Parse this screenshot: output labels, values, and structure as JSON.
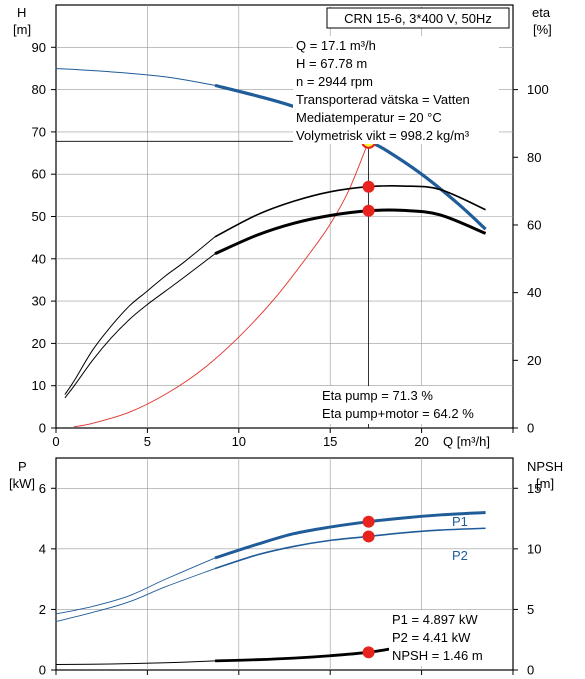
{
  "chart_data": [
    {
      "type": "line",
      "title": "CRN 15-6, 3*400 V, 50Hz",
      "xlabel": "Q [m³/h]",
      "ylabel_unit": "H",
      "ylabel_unit2": "[m]",
      "y2label_unit": "eta",
      "y2label_unit2": "[%]",
      "xlim": [
        0,
        25
      ],
      "ylim": [
        0,
        100
      ],
      "y2lim": [
        0,
        125
      ],
      "x_ticks": [
        0,
        5,
        10,
        15,
        20
      ],
      "y_ticks": [
        0,
        10,
        20,
        30,
        40,
        50,
        60,
        70,
        80,
        90
      ],
      "y2_ticks": [
        0,
        20,
        40,
        60,
        80,
        100
      ],
      "grid": true,
      "info_lines": [
        "Q = 17.1 m³/h",
        "H = 67.78 m",
        "n = 2944 rpm",
        "Transporterad vätska = Vatten",
        "Mediatemperatur = 20 °C",
        "Volymetrisk vikt = 998.2 kg/m³"
      ],
      "eta_lines": [
        "Eta pump = 71.3 %",
        "Eta pump+motor = 64.2 %"
      ],
      "colors": {
        "head": "#1f5c99",
        "system": "#e0322b",
        "eta": "#000000",
        "point": "#e8231d",
        "duty": "#fff23a"
      },
      "series": [
        {
          "kind": "head",
          "axis": "left",
          "x": [
            0,
            3,
            6,
            8.7,
            11,
            13,
            15,
            16,
            17.1,
            18,
            20,
            22,
            23.5
          ],
          "y": [
            85,
            84.2,
            83,
            81,
            78.5,
            76,
            72.5,
            70.3,
            67.78,
            65.8,
            60,
            53,
            47
          ],
          "bold_from": 8.7
        },
        {
          "kind": "system",
          "axis": "left",
          "x": [
            1,
            2,
            4,
            6,
            8,
            10,
            12,
            14,
            15,
            16,
            17.1
          ],
          "y": [
            0.3,
            1.1,
            3.7,
            8,
            13.8,
            21.5,
            30.8,
            42,
            48.2,
            56,
            67.78
          ],
          "bold_from": null
        },
        {
          "kind": "eta_pump",
          "axis": "right",
          "x": [
            0.5,
            1,
            2,
            3,
            4,
            5,
            6,
            7,
            8.7,
            11,
            13,
            15,
            17.1,
            19,
            21,
            23.5
          ],
          "y": [
            10,
            14,
            23,
            30,
            36,
            40.5,
            45,
            49,
            56.5,
            63,
            67,
            69.8,
            71.3,
            71.5,
            70.5,
            64.5
          ],
          "bold_from": 8.7
        },
        {
          "kind": "eta_total",
          "axis": "right",
          "x": [
            0.5,
            1,
            2,
            3,
            4,
            5,
            6,
            7,
            8.7,
            11,
            13,
            15,
            17.1,
            19,
            21,
            23.5
          ],
          "y": [
            9,
            12.5,
            20,
            26.5,
            32,
            36.5,
            40.5,
            44.5,
            51.5,
            57,
            60.5,
            62.8,
            64.2,
            64.3,
            63,
            57.5
          ],
          "bold_from": 8.7
        }
      ],
      "duty_point": {
        "x": 17.1,
        "y": 67.78
      },
      "markers": [
        {
          "axis": "right",
          "x": 17.1,
          "y": 71.3
        },
        {
          "axis": "right",
          "x": 17.1,
          "y": 64.2
        }
      ]
    },
    {
      "type": "line",
      "ylabel_unit": "P",
      "ylabel_unit2": "[kW]",
      "y2label_unit": "NPSH",
      "y2label_unit2": "[m]",
      "xlim": [
        0,
        25
      ],
      "ylim": [
        0,
        7
      ],
      "y2lim": [
        0,
        17.5
      ],
      "y_ticks": [
        0,
        2,
        4,
        6
      ],
      "y2_ticks": [
        0,
        5,
        10,
        15
      ],
      "grid": true,
      "info_lines": [
        "P1 = 4.897 kW",
        "P2 = 4.41 kW",
        "NPSH = 1.46 m"
      ],
      "series": [
        {
          "kind": "p1",
          "name": "P1",
          "axis": "left",
          "x": [
            0,
            2,
            4,
            6,
            8.7,
            11,
            13,
            15,
            17.1,
            19,
            21,
            23.5
          ],
          "y": [
            1.85,
            2.1,
            2.45,
            3.0,
            3.7,
            4.15,
            4.5,
            4.72,
            4.897,
            5.02,
            5.12,
            5.2
          ],
          "bold_from": 8.7
        },
        {
          "kind": "p2",
          "name": "P2",
          "axis": "left",
          "x": [
            0,
            2,
            4,
            6,
            8.7,
            11,
            13,
            15,
            17.1,
            19,
            21,
            23.5
          ],
          "y": [
            1.6,
            1.9,
            2.25,
            2.75,
            3.35,
            3.8,
            4.08,
            4.28,
            4.41,
            4.53,
            4.62,
            4.68
          ],
          "bold_from": 8.7
        },
        {
          "kind": "npsh",
          "axis": "right",
          "x": [
            0,
            3,
            6,
            8.7,
            11,
            13,
            15,
            17.1,
            18.5,
            19.5
          ],
          "y": [
            0.45,
            0.5,
            0.6,
            0.75,
            0.85,
            0.98,
            1.18,
            1.46,
            1.8,
            2.1
          ],
          "bold_from": 8.7
        }
      ],
      "markers": [
        {
          "axis": "left",
          "x": 17.1,
          "y": 4.897
        },
        {
          "axis": "left",
          "x": 17.1,
          "y": 4.41
        },
        {
          "axis": "right",
          "x": 17.1,
          "y": 1.46
        }
      ]
    }
  ]
}
